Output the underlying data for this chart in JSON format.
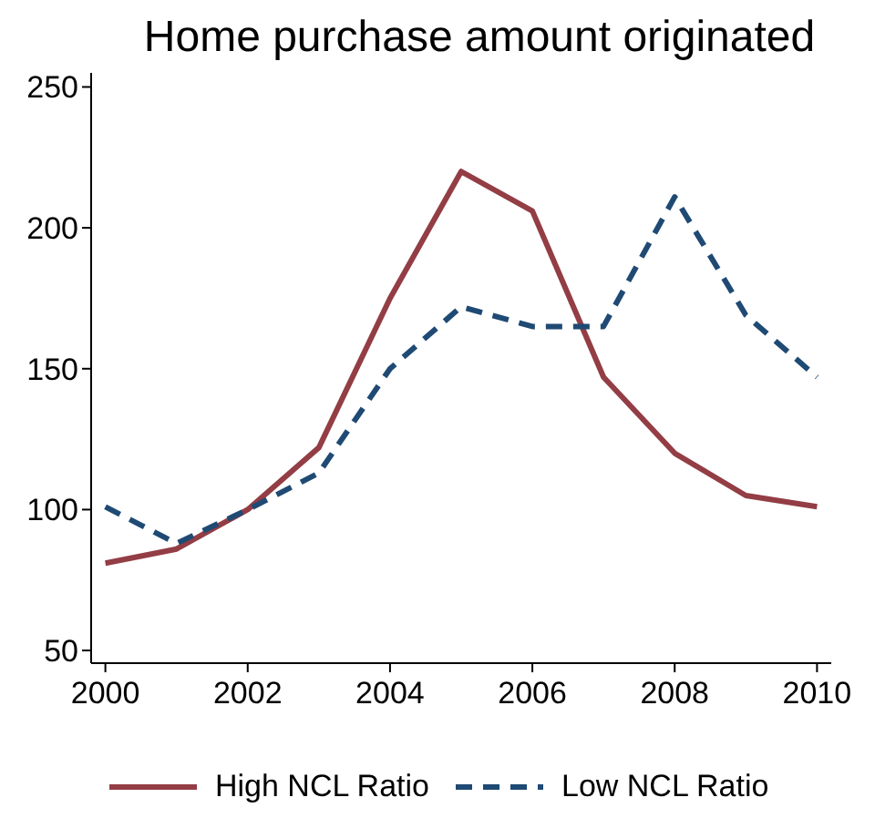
{
  "chart_data": {
    "type": "line",
    "title": "Home purchase amount originated",
    "x": [
      2000,
      2001,
      2002,
      2003,
      2004,
      2005,
      2006,
      2007,
      2008,
      2009,
      2010
    ],
    "series": [
      {
        "name": "High NCL Ratio",
        "color": "#933d45",
        "line_style": "solid",
        "values": [
          81,
          86,
          100,
          122,
          175,
          220,
          206,
          147,
          120,
          105,
          101
        ]
      },
      {
        "name": "Low NCL Ratio",
        "color": "#1f4a74",
        "line_style": "dashed",
        "values": [
          101,
          88,
          100,
          113,
          150,
          172,
          165,
          165,
          211,
          169,
          147
        ]
      }
    ],
    "xlim": [
      1999.8,
      2010.2
    ],
    "xticks": [
      2000,
      2002,
      2004,
      2006,
      2008,
      2010
    ],
    "ylim": [
      45.5,
      255
    ],
    "yticks": [
      50,
      100,
      150,
      200,
      250
    ],
    "grid": false,
    "legend": "bottom"
  }
}
